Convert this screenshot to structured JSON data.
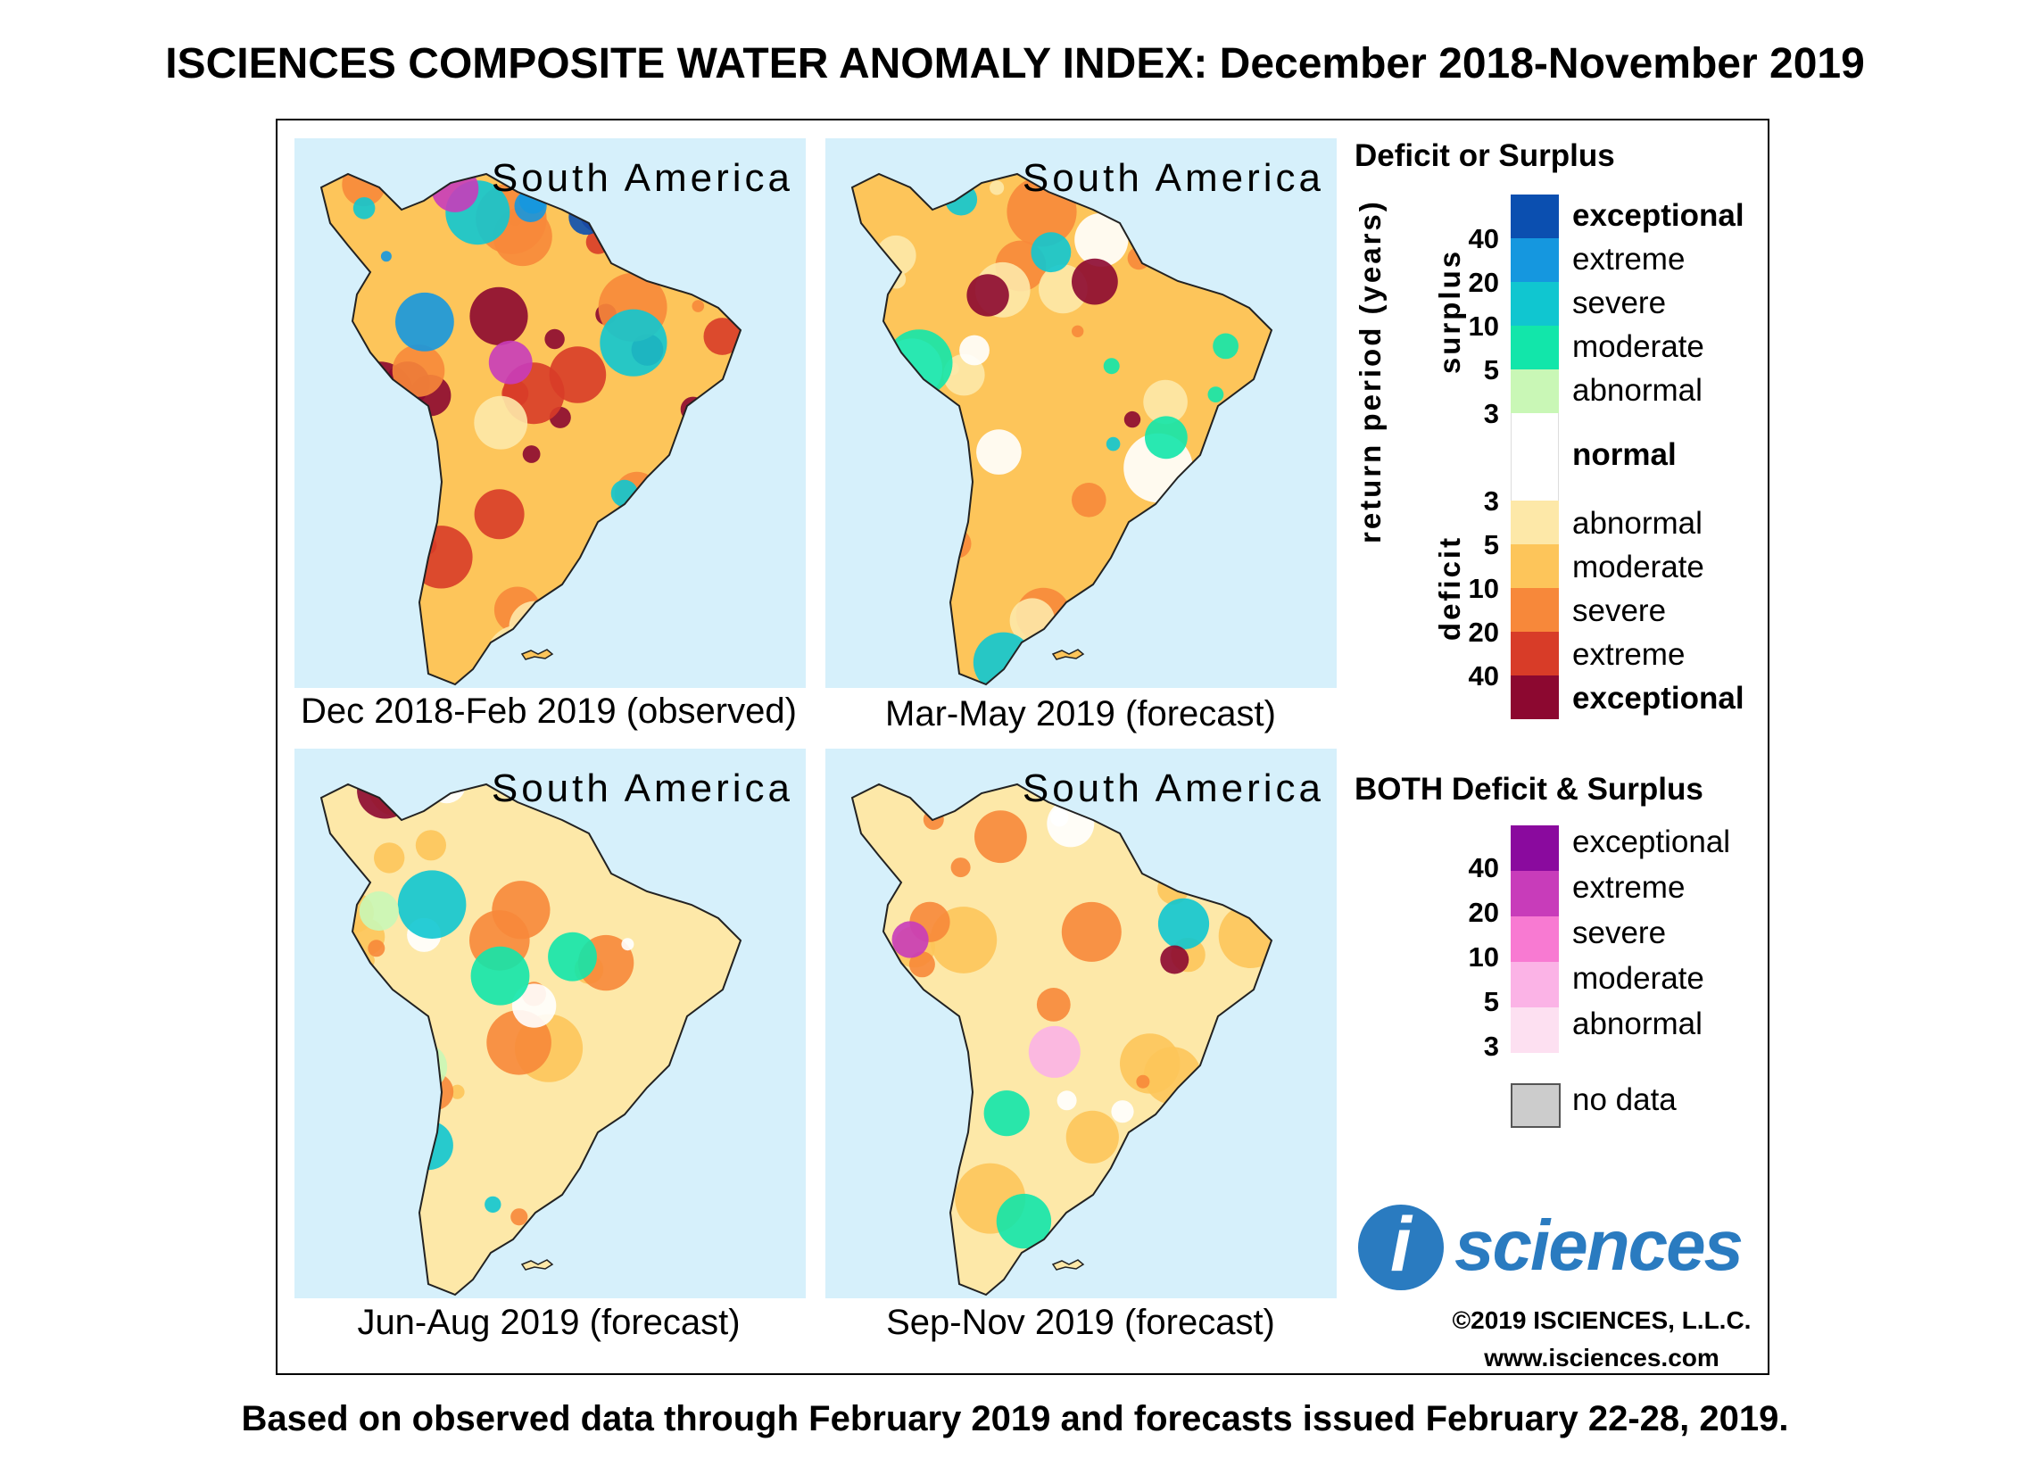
{
  "title": "ISCIENCES COMPOSITE WATER ANOMALY INDEX: December 2018-November 2019",
  "footnote": "Based on observed data through February 2019 and forecasts issued February 22-28, 2019.",
  "maps": [
    {
      "region": "South America",
      "caption": "Dec 2018-Feb 2019 (observed)",
      "scheme": "severe-deficit"
    },
    {
      "region": "South America",
      "caption": "Mar-May 2019 (forecast)",
      "scheme": "moderate-deficit"
    },
    {
      "region": "South America",
      "caption": "Jun-Aug 2019 (forecast)",
      "scheme": "mild-deficit"
    },
    {
      "region": "South America",
      "caption": "Sep-Nov 2019 (forecast)",
      "scheme": "mild-deficit-both"
    }
  ],
  "legend": {
    "deficit_surplus_title": "Deficit or Surplus",
    "both_title": "BOTH Deficit & Surplus",
    "axis_label": "return period (years)",
    "surplus_label": "surplus",
    "deficit_label": "deficit",
    "surplus_classes": [
      {
        "label": "exceptional",
        "color": "#0b4fb0",
        "bold": true
      },
      {
        "label": "extreme",
        "color": "#1597df",
        "bold": false
      },
      {
        "label": "severe",
        "color": "#10c6d0",
        "bold": false
      },
      {
        "label": "moderate",
        "color": "#12e6aa",
        "bold": false
      },
      {
        "label": "abnormal",
        "color": "#c9f7b6",
        "bold": false
      }
    ],
    "normal": {
      "label": "normal",
      "color": "#ffffff"
    },
    "deficit_classes": [
      {
        "label": "abnormal",
        "color": "#fde8a8",
        "bold": false
      },
      {
        "label": "moderate",
        "color": "#fdc55a",
        "bold": false
      },
      {
        "label": "severe",
        "color": "#f7883a",
        "bold": false
      },
      {
        "label": "extreme",
        "color": "#d83c28",
        "bold": false
      },
      {
        "label": "exceptional",
        "color": "#8c0830",
        "bold": true
      }
    ],
    "surplus_ticks": [
      "40",
      "20",
      "10",
      "5",
      "3"
    ],
    "deficit_ticks": [
      "3",
      "5",
      "10",
      "20",
      "40"
    ],
    "both_classes": [
      {
        "label": "exceptional",
        "color": "#8a0a9e"
      },
      {
        "label": "extreme",
        "color": "#c83cba"
      },
      {
        "label": "severe",
        "color": "#f87ad2"
      },
      {
        "label": "moderate",
        "color": "#fbb3e6"
      },
      {
        "label": "abnormal",
        "color": "#fde0f1"
      }
    ],
    "both_ticks": [
      "40",
      "20",
      "10",
      "5",
      "3"
    ],
    "no_data": {
      "label": "no data",
      "color": "#cccccc"
    }
  },
  "logo": {
    "letter": "i",
    "word": "sciences",
    "color": "#2a7bc0"
  },
  "copyright": "©2019 ISCIENCES, L.L.C.",
  "website": "www.isciences.com"
}
